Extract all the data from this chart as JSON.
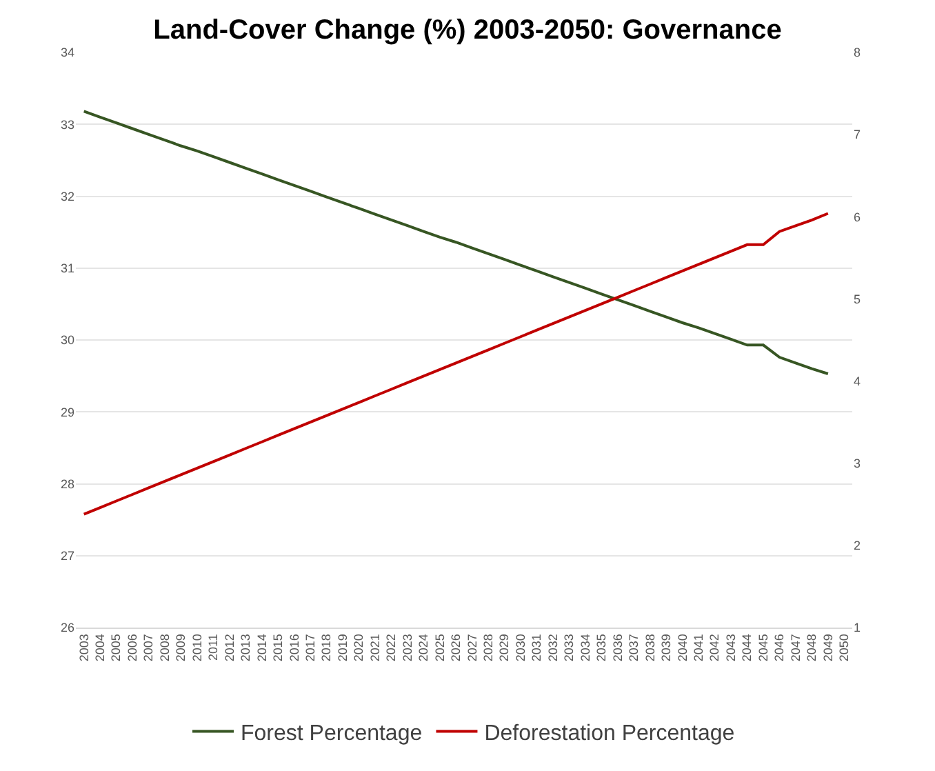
{
  "chart_data": {
    "type": "line",
    "title": "Land-Cover Change (%) 2003-2050: Governance",
    "categories": [
      "2003",
      "2004",
      "2005",
      "2006",
      "2007",
      "2008",
      "2009",
      "2010",
      "2011",
      "2012",
      "2013",
      "2014",
      "2015",
      "2016",
      "2017",
      "2018",
      "2019",
      "2020",
      "2021",
      "2022",
      "2023",
      "2024",
      "2025",
      "2026",
      "2027",
      "2028",
      "2029",
      "2030",
      "2031",
      "2032",
      "2033",
      "2034",
      "2035",
      "2036",
      "2037",
      "2038",
      "2039",
      "2040",
      "2041",
      "2042",
      "2043",
      "2044",
      "2045",
      "2046",
      "2047",
      "2048",
      "2049",
      "2050"
    ],
    "series": [
      {
        "name": "Forest Percentage",
        "color": "#375623",
        "values": [
          33.18,
          33.1,
          33.02,
          32.94,
          32.86,
          32.78,
          32.7,
          32.63,
          32.55,
          32.47,
          32.39,
          32.31,
          32.23,
          32.15,
          32.07,
          31.99,
          31.91,
          31.83,
          31.75,
          31.67,
          31.59,
          31.51,
          31.43,
          31.36,
          31.28,
          31.2,
          31.12,
          31.04,
          30.96,
          30.88,
          30.8,
          30.72,
          30.64,
          30.56,
          30.48,
          30.4,
          30.32,
          30.24,
          30.17,
          30.09,
          30.01,
          29.93,
          29.93,
          29.76,
          29.68,
          29.6,
          29.53,
          null
        ]
      },
      {
        "name": "Deforestation Percentage",
        "color": "#c00000",
        "axis": "y2",
        "values": [
          2.38,
          2.46,
          2.54,
          2.62,
          2.7,
          2.78,
          2.86,
          2.94,
          3.02,
          3.1,
          3.18,
          3.26,
          3.34,
          3.42,
          3.5,
          3.58,
          3.66,
          3.74,
          3.82,
          3.9,
          3.98,
          4.06,
          4.14,
          4.22,
          4.3,
          4.38,
          4.46,
          4.54,
          4.62,
          4.7,
          4.78,
          4.86,
          4.94,
          5.02,
          5.1,
          5.18,
          5.26,
          5.34,
          5.42,
          5.5,
          5.58,
          5.66,
          5.66,
          5.82,
          5.89,
          5.96,
          6.04,
          null
        ]
      }
    ],
    "ylim": [
      26,
      34
    ],
    "yticks": [
      26,
      27,
      28,
      29,
      30,
      31,
      32,
      33,
      34
    ],
    "y2lim": [
      1,
      8
    ],
    "y2ticks": [
      1,
      2,
      3,
      4,
      5,
      6,
      7,
      8
    ],
    "grid": "y",
    "legend": "bottom",
    "marker": "none",
    "line_style": "solid"
  }
}
